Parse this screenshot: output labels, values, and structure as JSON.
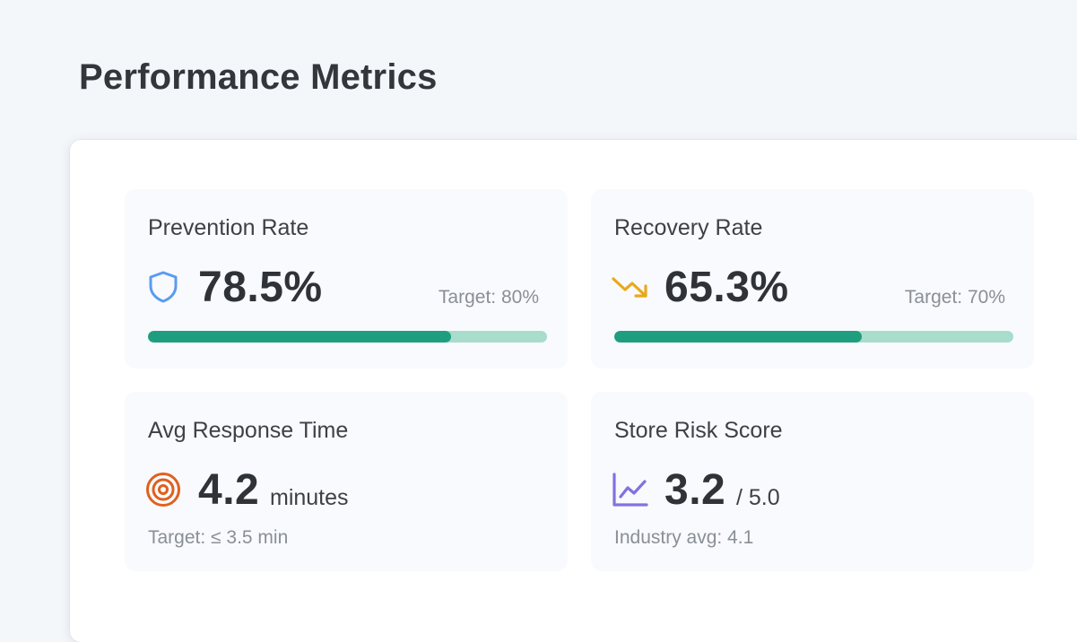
{
  "page": {
    "title": "Performance Metrics"
  },
  "metrics": {
    "prevention": {
      "label": "Prevention Rate",
      "value": "78.5%",
      "target": "Target: 80%",
      "progress": 0.76,
      "icon": "shield-icon",
      "icon_color": "#5b9bf0"
    },
    "recovery": {
      "label": "Recovery Rate",
      "value": "65.3%",
      "target": "Target: 70%",
      "progress": 0.62,
      "icon": "trending-down-icon",
      "icon_color": "#e9a91c"
    },
    "response": {
      "label": "Avg Response Time",
      "value": "4.2",
      "unit": "minutes",
      "target": "Target: ≤ 3.5 min",
      "icon": "target-icon",
      "icon_color": "#e0601e"
    },
    "risk": {
      "label": "Store Risk Score",
      "value": "3.2",
      "unit": "/ 5.0",
      "industry_avg": "Industry avg: 4.1",
      "icon": "line-chart-icon",
      "icon_color": "#8172e0"
    }
  },
  "colors": {
    "progress_fill": "#1f9e7f",
    "progress_track": "#a8dccb"
  }
}
